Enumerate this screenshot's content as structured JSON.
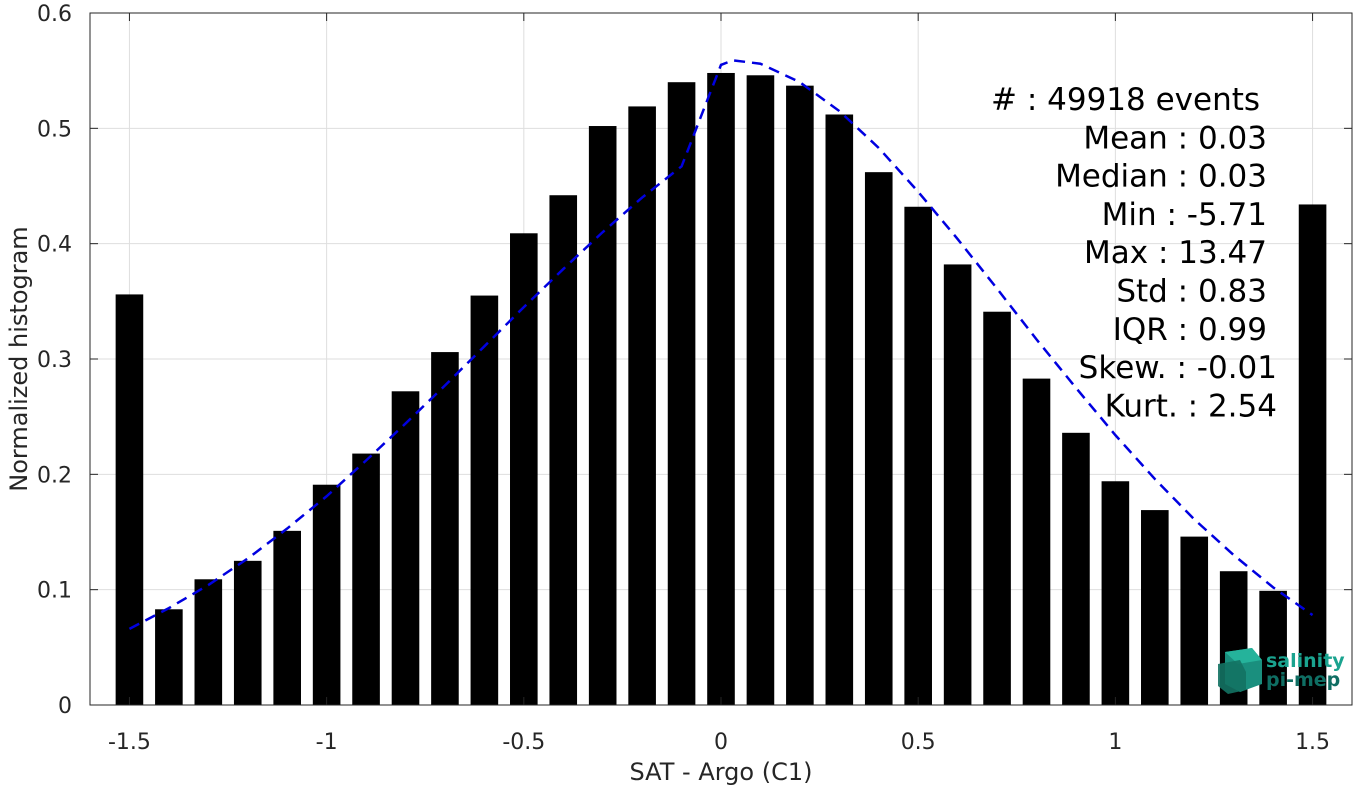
{
  "chart_data": {
    "type": "bar",
    "xlabel": "SAT - Argo (C1)",
    "ylabel": "Normalized histogram",
    "xlim": [
      -1.6,
      1.6
    ],
    "ylim": [
      0,
      0.6
    ],
    "grid": true,
    "x_ticks": [
      "-1.5",
      "-1",
      "-0.5",
      "0",
      "0.5",
      "1",
      "1.5"
    ],
    "x_tick_values": [
      -1.5,
      -1,
      -0.5,
      0,
      0.5,
      1,
      1.5
    ],
    "y_ticks": [
      "0",
      "0.1",
      "0.2",
      "0.3",
      "0.4",
      "0.5",
      "0.6"
    ],
    "y_tick_values": [
      0,
      0.1,
      0.2,
      0.3,
      0.4,
      0.5,
      0.6
    ],
    "bar_color": "#000000",
    "bar_width": 0.07,
    "bars": {
      "x": [
        -1.5,
        -1.4,
        -1.3,
        -1.2,
        -1.1,
        -1.0,
        -0.9,
        -0.8,
        -0.7,
        -0.6,
        -0.5,
        -0.4,
        -0.3,
        -0.2,
        -0.1,
        0.0,
        0.1,
        0.2,
        0.3,
        0.4,
        0.5,
        0.6,
        0.7,
        0.8,
        0.9,
        1.0,
        1.1,
        1.2,
        1.3,
        1.4,
        1.5
      ],
      "values": [
        0.356,
        0.083,
        0.109,
        0.125,
        0.151,
        0.191,
        0.218,
        0.272,
        0.306,
        0.355,
        0.409,
        0.442,
        0.502,
        0.519,
        0.54,
        0.548,
        0.546,
        0.537,
        0.512,
        0.462,
        0.432,
        0.382,
        0.341,
        0.283,
        0.236,
        0.194,
        0.169,
        0.146,
        0.116,
        0.099,
        0.434
      ]
    },
    "fit_curve": {
      "style": "dashed",
      "color": "#0000e0",
      "x": [
        -1.5,
        -1.4,
        -1.3,
        -1.2,
        -1.1,
        -1.0,
        -0.9,
        -0.8,
        -0.7,
        -0.6,
        -0.5,
        -0.4,
        -0.3,
        -0.2,
        -0.1,
        0.0,
        0.03,
        0.1,
        0.2,
        0.3,
        0.4,
        0.5,
        0.6,
        0.7,
        0.8,
        0.9,
        1.0,
        1.1,
        1.2,
        1.3,
        1.4,
        1.5
      ],
      "y": [
        0.066,
        0.084,
        0.104,
        0.127,
        0.153,
        0.181,
        0.212,
        0.244,
        0.277,
        0.311,
        0.345,
        0.378,
        0.41,
        0.44,
        0.467,
        0.555,
        0.559,
        0.556,
        0.54,
        0.515,
        0.483,
        0.445,
        0.404,
        0.361,
        0.317,
        0.275,
        0.234,
        0.196,
        0.161,
        0.13,
        0.102,
        0.078
      ]
    }
  },
  "stats": [
    {
      "label": "#  : 49918 events",
      "align": "left"
    },
    {
      "label": "Mean : 0.03",
      "align": "right"
    },
    {
      "label": "Median : 0.03",
      "align": "right"
    },
    {
      "label": "Min : -5.71",
      "align": "right"
    },
    {
      "label": "Max : 13.47",
      "align": "right"
    },
    {
      "label": "Std : 0.83",
      "align": "right"
    },
    {
      "label": "IQR : 0.99",
      "align": "right"
    },
    {
      "label": "Skew. : -0.01",
      "align": "right"
    },
    {
      "label": "Kurt. : 2.54",
      "align": "right"
    }
  ],
  "logo": {
    "line1": "salinity",
    "line2": "pi-mep",
    "color1": "#1aa38f",
    "color2": "#0f6e63"
  }
}
